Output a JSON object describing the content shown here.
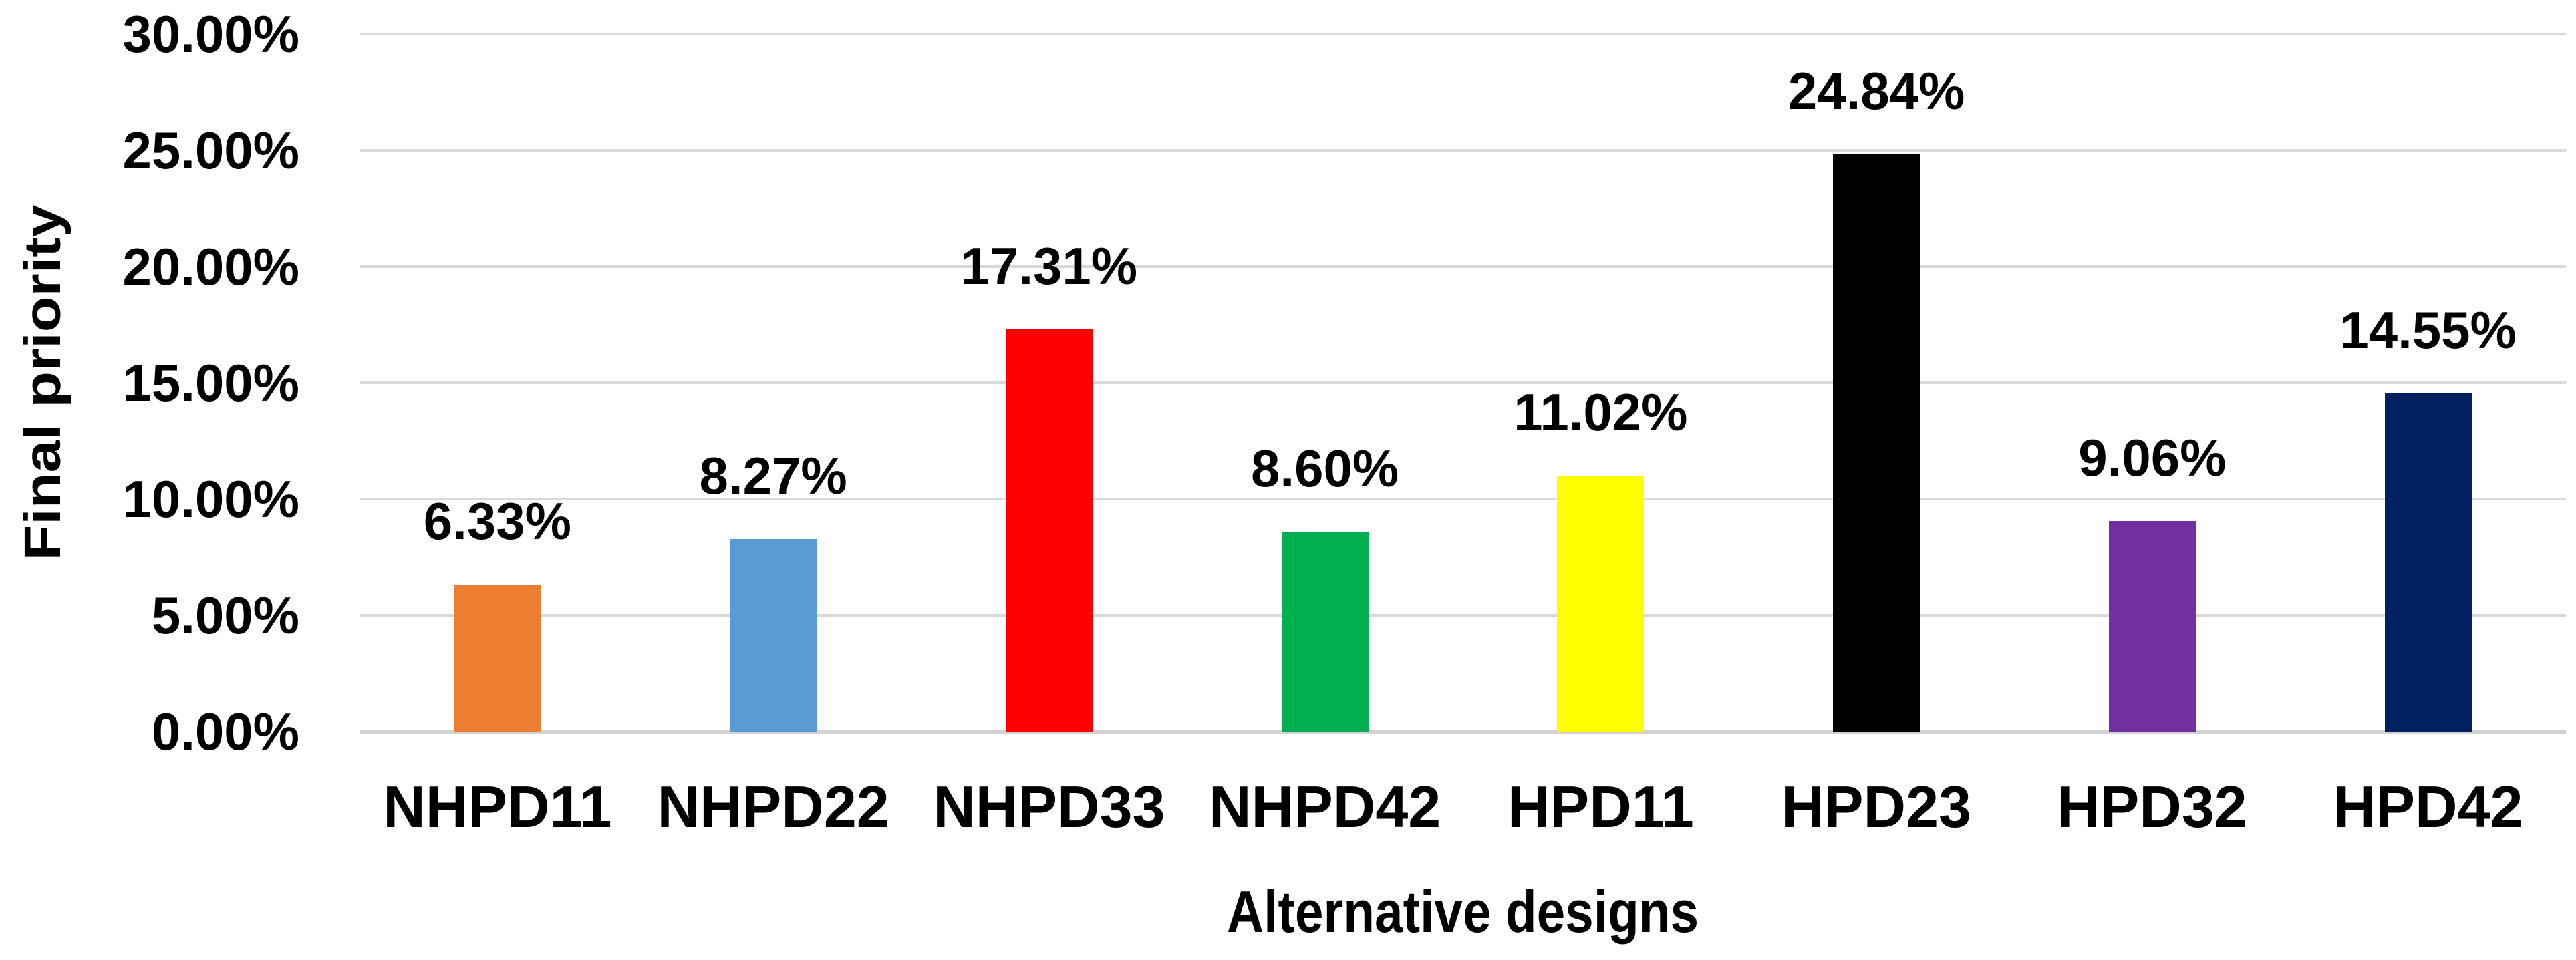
{
  "chart_data": {
    "type": "bar",
    "title": "",
    "xlabel": "Alternative designs",
    "ylabel": "Final priority",
    "categories": [
      "NHPD11",
      "NHPD22",
      "NHPD33",
      "NHPD42",
      "HPD11",
      "HPD23",
      "HPD32",
      "HPD42"
    ],
    "values": [
      6.33,
      8.27,
      17.31,
      8.6,
      11.02,
      24.84,
      9.06,
      14.55
    ],
    "data_labels": [
      "6.33%",
      "8.27%",
      "17.31%",
      "8.60%",
      "11.02%",
      "24.84%",
      "9.06%",
      "14.55%"
    ],
    "bar_colors": [
      "#ED7D31",
      "#5B9BD5",
      "#FF0000",
      "#00B050",
      "#FFFF00",
      "#000000",
      "#7030A0",
      "#002060"
    ],
    "y_ticks": [
      "0.00%",
      "5.00%",
      "10.00%",
      "15.00%",
      "20.00%",
      "25.00%",
      "30.00%"
    ],
    "ylim": [
      0,
      30
    ],
    "grid": true,
    "legend": "none",
    "gridline_color": "#D9D9D9",
    "axis_text_color": "#000000"
  }
}
